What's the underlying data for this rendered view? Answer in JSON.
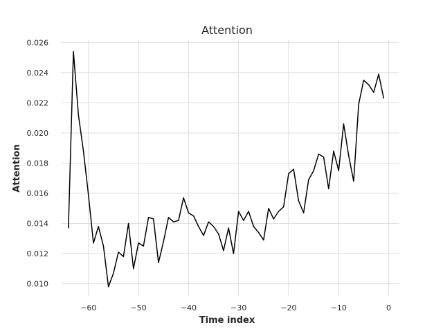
{
  "chart_data": {
    "type": "line",
    "title": "Attention",
    "xlabel": "Time index",
    "ylabel": "Attention",
    "xlim": [
      -65.5,
      2
    ],
    "ylim": [
      0.0092,
      0.0262
    ],
    "x_ticks": [
      -60,
      -50,
      -40,
      -30,
      -20,
      -10,
      0
    ],
    "x_tick_labels": [
      "−60",
      "−50",
      "−40",
      "−30",
      "−20",
      "−10",
      "0"
    ],
    "y_ticks": [
      0.01,
      0.012,
      0.014,
      0.016,
      0.018,
      0.02,
      0.022,
      0.024,
      0.026
    ],
    "y_tick_labels": [
      "0.010",
      "0.012",
      "0.014",
      "0.016",
      "0.018",
      "0.020",
      "0.022",
      "0.024",
      "0.026"
    ],
    "grid": true,
    "legend": "none",
    "line_color": "#000000",
    "grid_color": "#dddddd",
    "series": [
      {
        "x": [
          -64,
          -63,
          -62,
          -61,
          -60,
          -59,
          -58,
          -57,
          -56,
          -55,
          -54,
          -53,
          -52,
          -51,
          -50,
          -49,
          -48,
          -47,
          -46,
          -45,
          -44,
          -43,
          -42,
          -41,
          -40,
          -39,
          -38,
          -37,
          -36,
          -35,
          -34,
          -33,
          -32,
          -31,
          -30,
          -29,
          -28,
          -27,
          -26,
          -25,
          -24,
          -23,
          -22,
          -21,
          -20,
          -19,
          -18,
          -17,
          -16,
          -15,
          -14,
          -13,
          -12,
          -11,
          -10,
          -9,
          -8,
          -7,
          -6,
          -5,
          -4,
          -3,
          -2,
          -1
        ],
        "values": [
          0.0137,
          0.0254,
          0.0212,
          0.0188,
          0.0159,
          0.0127,
          0.0138,
          0.0125,
          0.0098,
          0.0107,
          0.0121,
          0.0118,
          0.014,
          0.011,
          0.0127,
          0.0125,
          0.0144,
          0.0143,
          0.0114,
          0.0128,
          0.0144,
          0.0141,
          0.0142,
          0.0157,
          0.0147,
          0.0145,
          0.0138,
          0.0132,
          0.0141,
          0.0138,
          0.0133,
          0.0122,
          0.0137,
          0.012,
          0.0148,
          0.0142,
          0.0148,
          0.0138,
          0.0134,
          0.0129,
          0.015,
          0.0143,
          0.0148,
          0.0151,
          0.0173,
          0.0176,
          0.0155,
          0.0147,
          0.0169,
          0.0175,
          0.0186,
          0.0184,
          0.0163,
          0.0188,
          0.0175,
          0.0206,
          0.0185,
          0.0168,
          0.0219,
          0.0235,
          0.0232,
          0.0227,
          0.0239,
          0.0223
        ]
      }
    ]
  }
}
